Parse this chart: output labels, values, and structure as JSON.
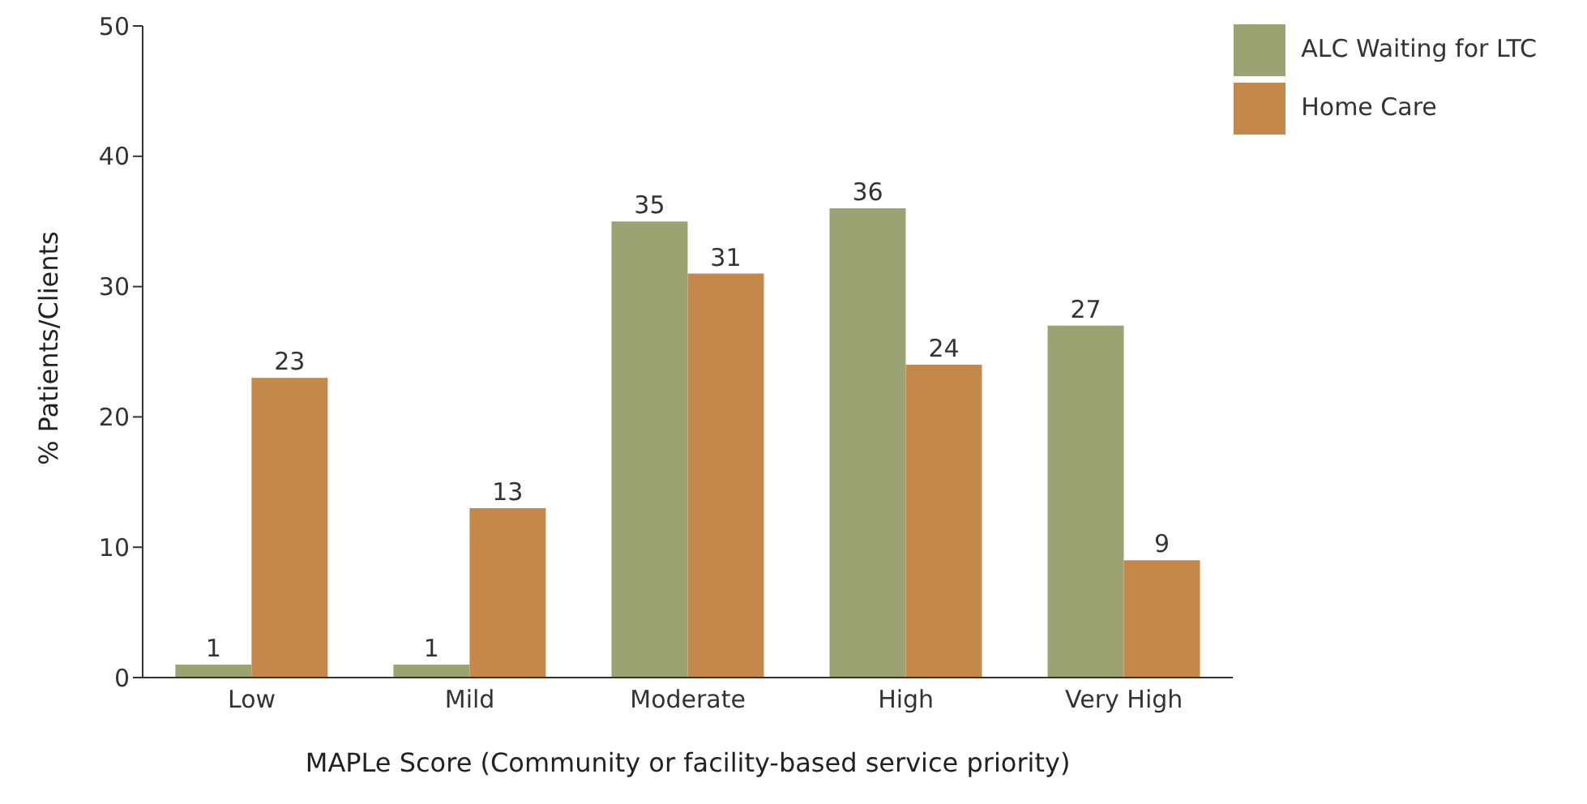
{
  "chart_data": {
    "type": "bar",
    "xlabel": "MAPLe Score (Community or facility-based service priority)",
    "ylabel": "% Patients/Clients",
    "categories": [
      "Low",
      "Mild",
      "Moderate",
      "High",
      "Very High"
    ],
    "series": [
      {
        "name": "ALC Waiting for LTC",
        "color": "#9ba373",
        "values": [
          1,
          1,
          35,
          36,
          27
        ]
      },
      {
        "name": "Home Care",
        "color": "#c4884a",
        "values": [
          23,
          13,
          31,
          24,
          9
        ]
      }
    ],
    "ylim": [
      0,
      50
    ],
    "yticks": [
      0,
      10,
      20,
      30,
      40,
      50
    ],
    "data_labels": true,
    "grid": false,
    "legend": "top right"
  }
}
